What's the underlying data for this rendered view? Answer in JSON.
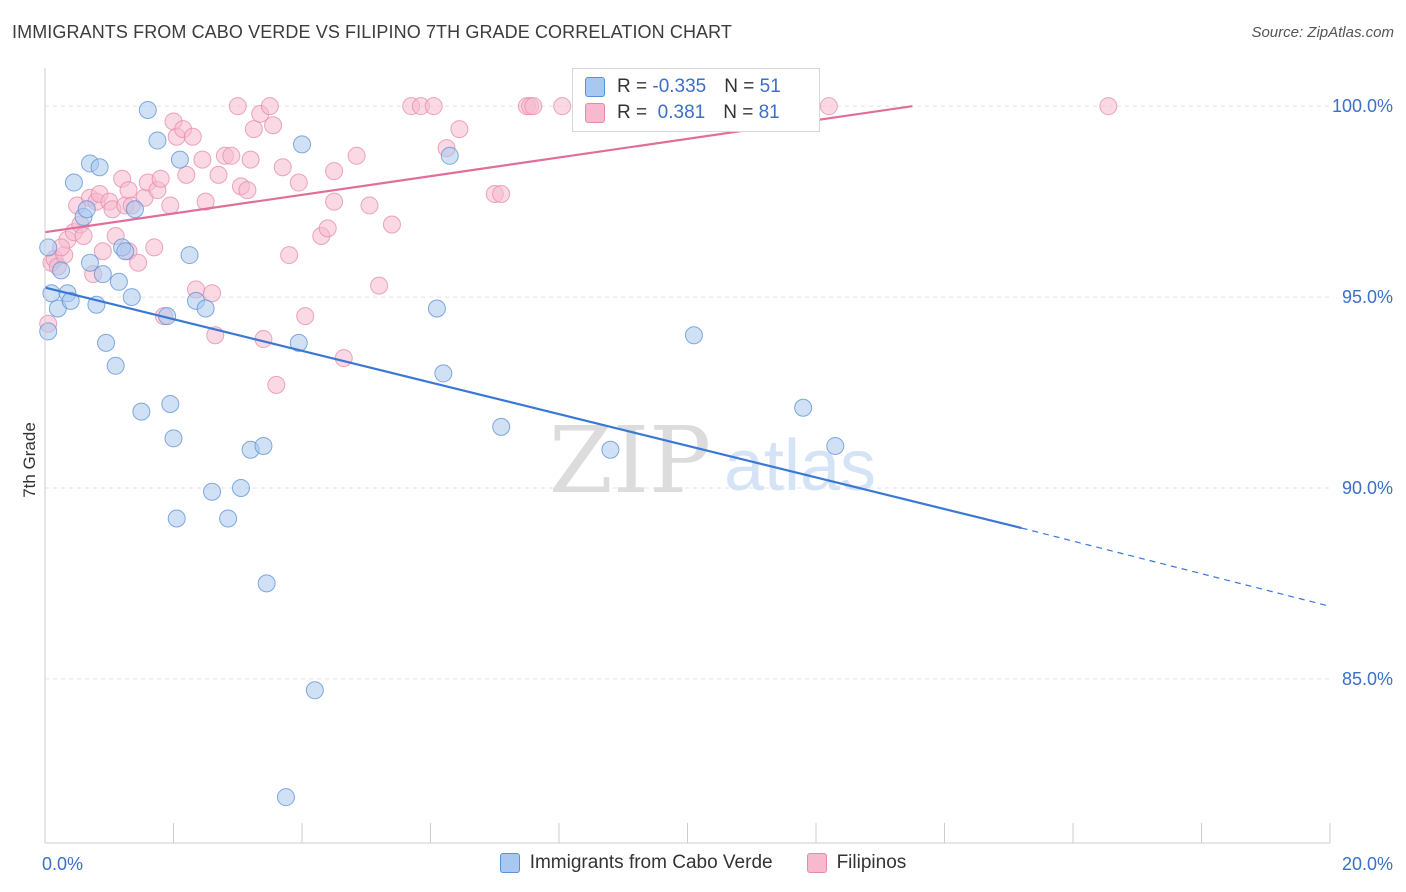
{
  "colors": {
    "series_blue_fill": "#aac8ef",
    "series_blue_stroke": "#5b8fd6",
    "series_blue_line": "#3a78d4",
    "series_pink_fill": "#f6b9cd",
    "series_pink_stroke": "#e68aab",
    "series_pink_line": "#e06e98",
    "tick_label": "#3b6fc8",
    "grid": "#e3e3e3",
    "axis": "#cccccc"
  },
  "legend_top": {
    "rows": [
      {
        "r_label": "R = ",
        "r_value": "-0.335",
        "n_label": "N = ",
        "n_value": "51"
      },
      {
        "r_label": "R = ",
        "r_value": " 0.381",
        "n_label": "N = ",
        "n_value": "81"
      }
    ]
  },
  "watermark": {
    "zip": "ZIP",
    "atlas": "atlas"
  },
  "chart_data": {
    "type": "scatter",
    "title": "IMMIGRANTS FROM CABO VERDE VS FILIPINO 7TH GRADE CORRELATION CHART",
    "source": "Source: ZipAtlas.com",
    "xlabel": "",
    "ylabel": "7th Grade",
    "xlim": [
      0,
      20
    ],
    "ylim": [
      80.7,
      101.0
    ],
    "x_tick_labels": [
      {
        "value": 0,
        "label": "0.0%"
      },
      {
        "value": 20,
        "label": "20.0%"
      }
    ],
    "y_tick_labels": [
      {
        "value": 100,
        "label": "100.0%"
      },
      {
        "value": 95,
        "label": "95.0%"
      },
      {
        "value": 90,
        "label": "90.0%"
      },
      {
        "value": 85,
        "label": "85.0%"
      }
    ],
    "x_minor_ticks": [
      0,
      2,
      4,
      6,
      8,
      10,
      12,
      14,
      16,
      18,
      20
    ],
    "grid": true,
    "legend_position": "top-center",
    "series": [
      {
        "name": "Immigrants from Cabo Verde",
        "color": "blue",
        "R": -0.335,
        "N": 51,
        "trend": {
          "x0": 0,
          "y0": 95.25,
          "x1": 15.2,
          "y1": 88.95,
          "dash_to_x": 20,
          "dash_to_y": 86.9
        },
        "points": [
          [
            0.05,
            94.1
          ],
          [
            0.05,
            96.3
          ],
          [
            0.1,
            95.1
          ],
          [
            0.2,
            94.7
          ],
          [
            0.25,
            95.7
          ],
          [
            0.35,
            95.1
          ],
          [
            0.4,
            94.9
          ],
          [
            0.45,
            98.0
          ],
          [
            0.6,
            97.1
          ],
          [
            0.65,
            97.3
          ],
          [
            0.7,
            95.9
          ],
          [
            0.7,
            98.5
          ],
          [
            0.8,
            94.8
          ],
          [
            0.85,
            98.4
          ],
          [
            0.9,
            95.6
          ],
          [
            0.95,
            93.8
          ],
          [
            1.1,
            93.2
          ],
          [
            1.15,
            95.4
          ],
          [
            1.2,
            96.3
          ],
          [
            1.25,
            96.2
          ],
          [
            1.35,
            95.0
          ],
          [
            1.4,
            97.3
          ],
          [
            1.5,
            92.0
          ],
          [
            1.6,
            99.9
          ],
          [
            1.75,
            99.1
          ],
          [
            1.9,
            94.5
          ],
          [
            1.95,
            92.2
          ],
          [
            2.0,
            91.3
          ],
          [
            2.05,
            89.2
          ],
          [
            2.1,
            98.6
          ],
          [
            2.25,
            96.1
          ],
          [
            2.35,
            94.9
          ],
          [
            2.5,
            94.7
          ],
          [
            2.6,
            89.9
          ],
          [
            2.85,
            89.2
          ],
          [
            3.05,
            90.0
          ],
          [
            3.2,
            91.0
          ],
          [
            3.4,
            91.1
          ],
          [
            3.45,
            87.5
          ],
          [
            3.75,
            81.9
          ],
          [
            3.95,
            93.8
          ],
          [
            4.0,
            99.0
          ],
          [
            4.2,
            84.7
          ],
          [
            6.1,
            94.7
          ],
          [
            6.2,
            93.0
          ],
          [
            6.3,
            98.7
          ],
          [
            7.1,
            91.6
          ],
          [
            8.8,
            91.0
          ],
          [
            10.1,
            94.0
          ],
          [
            11.8,
            92.1
          ],
          [
            12.3,
            91.1
          ]
        ]
      },
      {
        "name": "Filipinos",
        "color": "pink",
        "R": 0.381,
        "N": 81,
        "trend": {
          "x0": 0,
          "y0": 96.7,
          "x1": 13.5,
          "y1": 100.0
        },
        "points": [
          [
            0.05,
            94.3
          ],
          [
            0.1,
            95.9
          ],
          [
            0.15,
            96.0
          ],
          [
            0.2,
            95.8
          ],
          [
            0.3,
            96.1
          ],
          [
            0.35,
            96.5
          ],
          [
            0.45,
            96.7
          ],
          [
            0.5,
            97.4
          ],
          [
            0.55,
            96.9
          ],
          [
            0.6,
            96.6
          ],
          [
            0.7,
            97.6
          ],
          [
            0.75,
            95.6
          ],
          [
            0.8,
            97.5
          ],
          [
            0.85,
            97.7
          ],
          [
            0.9,
            96.2
          ],
          [
            1.0,
            97.5
          ],
          [
            1.05,
            97.3
          ],
          [
            1.1,
            96.6
          ],
          [
            1.2,
            98.1
          ],
          [
            1.25,
            97.4
          ],
          [
            1.3,
            96.2
          ],
          [
            1.3,
            97.8
          ],
          [
            1.35,
            97.4
          ],
          [
            1.45,
            95.9
          ],
          [
            1.55,
            97.6
          ],
          [
            1.6,
            98.0
          ],
          [
            1.7,
            96.3
          ],
          [
            1.75,
            97.8
          ],
          [
            1.8,
            98.1
          ],
          [
            1.85,
            94.5
          ],
          [
            1.95,
            97.4
          ],
          [
            2.0,
            99.6
          ],
          [
            2.05,
            99.2
          ],
          [
            2.15,
            99.4
          ],
          [
            2.2,
            98.2
          ],
          [
            2.3,
            99.2
          ],
          [
            2.35,
            95.2
          ],
          [
            2.45,
            98.6
          ],
          [
            2.5,
            97.5
          ],
          [
            2.6,
            95.1
          ],
          [
            2.65,
            94.0
          ],
          [
            2.7,
            98.2
          ],
          [
            2.8,
            98.7
          ],
          [
            2.9,
            98.7
          ],
          [
            3.0,
            100.0
          ],
          [
            3.05,
            97.9
          ],
          [
            3.15,
            97.8
          ],
          [
            3.2,
            98.6
          ],
          [
            3.25,
            99.4
          ],
          [
            3.35,
            99.8
          ],
          [
            3.4,
            93.9
          ],
          [
            3.5,
            100.0
          ],
          [
            3.55,
            99.5
          ],
          [
            3.6,
            92.7
          ],
          [
            3.7,
            98.4
          ],
          [
            3.8,
            96.1
          ],
          [
            3.95,
            98.0
          ],
          [
            4.05,
            94.5
          ],
          [
            4.3,
            96.6
          ],
          [
            4.4,
            96.8
          ],
          [
            4.5,
            98.3
          ],
          [
            4.5,
            97.5
          ],
          [
            4.65,
            93.4
          ],
          [
            4.85,
            98.7
          ],
          [
            5.05,
            97.4
          ],
          [
            5.2,
            95.3
          ],
          [
            5.4,
            96.9
          ],
          [
            5.7,
            100.0
          ],
          [
            5.85,
            100.0
          ],
          [
            6.05,
            100.0
          ],
          [
            6.25,
            98.9
          ],
          [
            6.45,
            99.4
          ],
          [
            7.0,
            97.7
          ],
          [
            7.1,
            97.7
          ],
          [
            7.5,
            100.0
          ],
          [
            7.55,
            100.0
          ],
          [
            7.6,
            100.0
          ],
          [
            8.05,
            100.0
          ],
          [
            12.2,
            100.0
          ],
          [
            16.55,
            100.0
          ],
          [
            0.25,
            96.3
          ]
        ]
      }
    ]
  }
}
